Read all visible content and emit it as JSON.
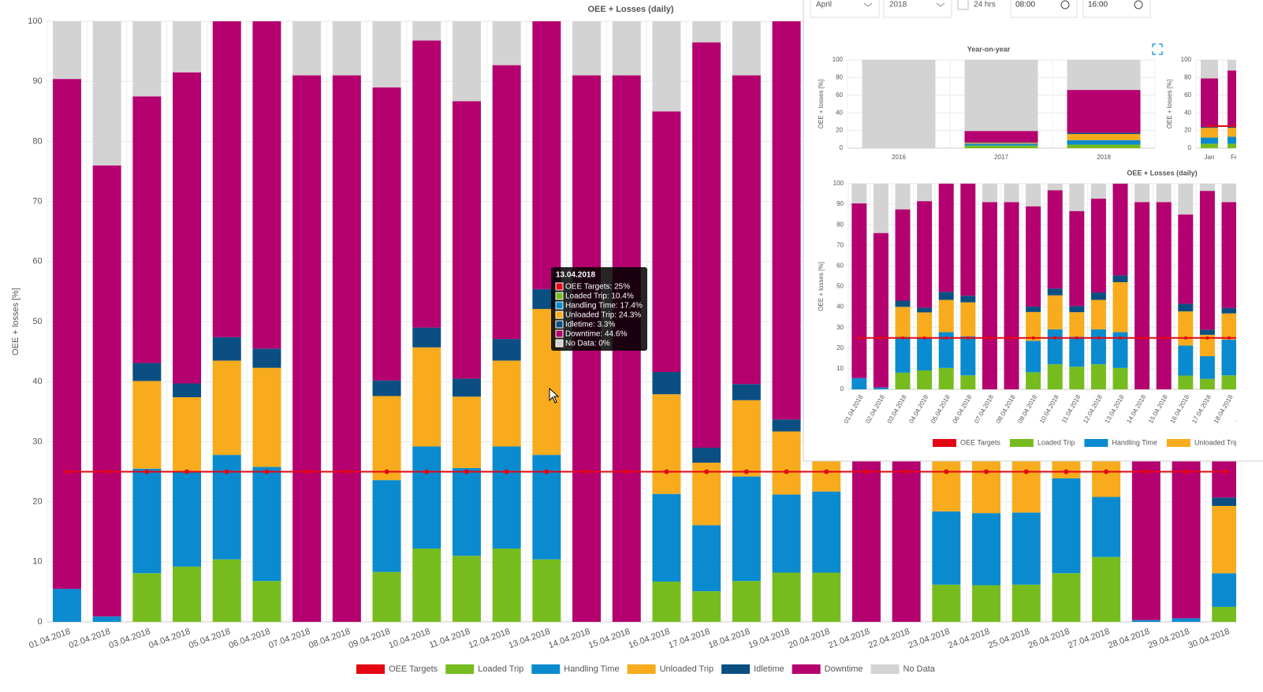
{
  "chart_data": [
    {
      "type": "bar",
      "stacked": true,
      "title": "OEE + Losses (daily)",
      "y_label": "OEE + losses [%]",
      "categories": [
        "01.04.2018",
        "02.04.2018",
        "03.04.2018",
        "04.04.2018",
        "05.04.2018",
        "06.04.2018",
        "07.04.2018",
        "08.04.2018",
        "09.04.2018",
        "10.04.2018",
        "11.04.2018",
        "12.04.2018",
        "13.04.2018",
        "14.04.2018",
        "15.04.2018",
        "16.04.2018",
        "17.04.2018",
        "18.04.2018",
        "19.04.2018",
        "20.04.2018",
        "21.04.2018",
        "22.04.2018",
        "23.04.2018",
        "24.04.2018",
        "25.04.2018",
        "26.04.2018",
        "27.04.2018",
        "28.04.2018",
        "29.04.2018",
        "30.04.2018"
      ],
      "series": [
        {
          "name": "OEE Targets",
          "type": "line",
          "color": "#e30613",
          "values": [
            25,
            25,
            25,
            25,
            25,
            25,
            25,
            25,
            25,
            25,
            25,
            25,
            25,
            25,
            25,
            25,
            25,
            25,
            25,
            25,
            25,
            25,
            25,
            25,
            25,
            25,
            25,
            25,
            25,
            25
          ]
        },
        {
          "name": "Loaded Trip",
          "color": "#77bc1f",
          "values": [
            0,
            0,
            8.1,
            9.2,
            10.4,
            6.8,
            0,
            0,
            8.3,
            12.2,
            11,
            12.2,
            10.4,
            0,
            0,
            6.7,
            5.1,
            6.8,
            8.2,
            8.2,
            0,
            0,
            6.2,
            6.1,
            6.2,
            8.1,
            10.8,
            0,
            0,
            2.5
          ]
        },
        {
          "name": "Handling Time",
          "color": "#0a8bcf",
          "values": [
            5.5,
            0.9,
            17.4,
            15.8,
            17.4,
            19,
            0,
            0,
            15.3,
            17,
            14.6,
            17,
            17.4,
            0,
            0,
            14.6,
            11,
            17.4,
            13,
            13.5,
            0,
            0,
            12.2,
            12,
            12,
            15.8,
            10,
            0.3,
            0.6,
            5.6
          ]
        },
        {
          "name": "Unloaded Trip",
          "color": "#f8ab1c",
          "values": [
            0,
            0,
            14.6,
            12.4,
            15.7,
            16.5,
            0,
            0,
            14,
            16.5,
            11.9,
            14.3,
            24.3,
            0,
            0,
            16.6,
            10.4,
            12.7,
            10.5,
            10.5,
            0,
            0,
            14,
            14,
            13,
            12,
            10,
            0,
            0,
            11.2
          ]
        },
        {
          "name": "Idletime",
          "color": "#0b4f82",
          "values": [
            0,
            0,
            3,
            2.3,
            3.9,
            3.2,
            0,
            0,
            2.6,
            3.3,
            3,
            3.6,
            3.3,
            0,
            0,
            3.7,
            2.5,
            2.7,
            2,
            2.8,
            0,
            0,
            3,
            3,
            3,
            3,
            3,
            0,
            0,
            1.4
          ]
        },
        {
          "name": "Downtime",
          "color": "#b5006f",
          "values": [
            84.9,
            75.1,
            44.4,
            51.8,
            52.6,
            54.5,
            91,
            91,
            48.8,
            47.8,
            46.2,
            45.6,
            44.6,
            91,
            91,
            43.4,
            67.5,
            51.4,
            66.3,
            50,
            91,
            91,
            52,
            54,
            55,
            50,
            52,
            90,
            90,
            70
          ]
        },
        {
          "name": "No Data",
          "color": "#d3d3d3",
          "values": [
            9.6,
            24,
            12.5,
            8.5,
            0,
            0,
            9,
            9,
            11,
            3.2,
            13.3,
            7.3,
            0,
            9,
            9,
            15,
            3.5,
            9,
            0,
            15,
            9,
            9,
            12.6,
            10.9,
            10.8,
            11.1,
            14.2,
            9.7,
            9.4,
            9.3
          ]
        }
      ],
      "ylim": [
        0,
        100
      ],
      "yticks": [
        0,
        10,
        20,
        30,
        40,
        50,
        60,
        70,
        80,
        90,
        100
      ],
      "grid": true,
      "legend": "bottom",
      "tooltip": {
        "title": "13.04.2018",
        "items": [
          "OEE Targets: 25%",
          "Loaded Trip: 10.4%",
          "Handling Time: 17.4%",
          "Unloaded Trip: 24.3%",
          "Idletime: 3.3%",
          "Downtime: 44.6%",
          "No Data: 0%"
        ]
      }
    },
    {
      "type": "bar",
      "stacked": true,
      "title": "Year-on-year",
      "y_label": "OEE + losses [%]",
      "categories": [
        "2016",
        "2017",
        "2018"
      ],
      "series": [
        {
          "name": "Loaded Trip",
          "color": "#77bc1f",
          "values": [
            0,
            3,
            4
          ]
        },
        {
          "name": "Handling Time",
          "color": "#0a8bcf",
          "values": [
            0,
            2,
            5
          ]
        },
        {
          "name": "Unloaded Trip",
          "color": "#f8ab1c",
          "values": [
            0,
            1,
            7
          ]
        },
        {
          "name": "Idletime",
          "color": "#0b4f82",
          "values": [
            0,
            0.5,
            1.5
          ]
        },
        {
          "name": "Downtime",
          "color": "#b5006f",
          "values": [
            0,
            13,
            48.5
          ]
        },
        {
          "name": "No Data",
          "color": "#d3d3d3",
          "values": [
            100,
            80.5,
            34
          ]
        }
      ],
      "ylim": [
        0,
        100
      ],
      "yticks": [
        0,
        20,
        40,
        60,
        80,
        100
      ],
      "grid": true
    },
    {
      "type": "bar",
      "stacked": true,
      "y_label": "OEE + losses [%]",
      "categories": [
        "Jan",
        "Feb"
      ],
      "series": [
        {
          "name": "OEE Targets",
          "type": "line",
          "color": "#e30613",
          "values": [
            25,
            25
          ]
        },
        {
          "name": "Loaded Trip",
          "color": "#77bc1f",
          "values": [
            5,
            5
          ]
        },
        {
          "name": "Handling Time",
          "color": "#0a8bcf",
          "values": [
            7,
            8
          ]
        },
        {
          "name": "Unloaded Trip",
          "color": "#f8ab1c",
          "values": [
            11,
            10
          ]
        },
        {
          "name": "Idletime",
          "color": "#0b4f82",
          "values": [
            1,
            2
          ]
        },
        {
          "name": "Downtime",
          "color": "#b5006f",
          "values": [
            55,
            63
          ]
        },
        {
          "name": "No Data",
          "color": "#d3d3d3",
          "values": [
            21,
            12
          ]
        }
      ],
      "ylim": [
        0,
        100
      ],
      "yticks": [
        0,
        20,
        40,
        60,
        80,
        100
      ],
      "grid": true
    }
  ],
  "controls": {
    "month": "April",
    "year": "2018",
    "hours": "24 hrs",
    "from": "08:00",
    "to": "16:00"
  }
}
